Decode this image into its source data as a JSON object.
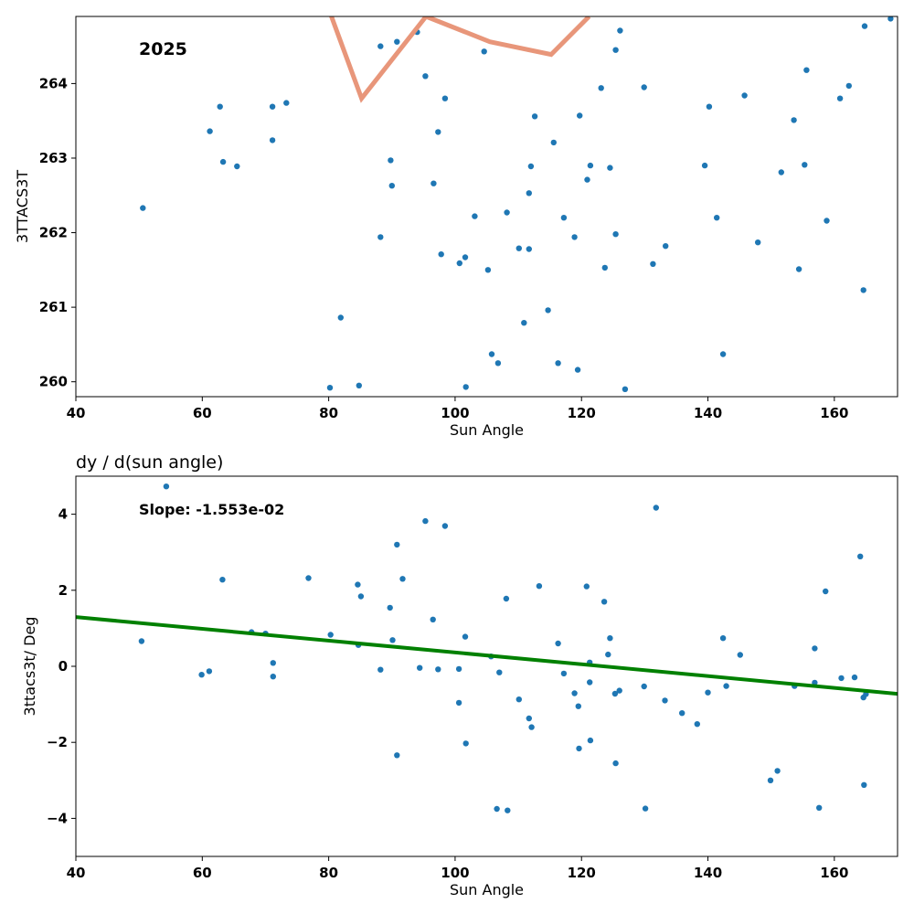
{
  "chart_data": [
    {
      "type": "scatter",
      "title": "",
      "xlabel": "Sun Angle",
      "ylabel": "3TTACS3T",
      "annotation": "2025",
      "xlim": [
        40,
        170
      ],
      "ylim": [
        259.8,
        264.9
      ],
      "xticks": [
        40,
        60,
        80,
        100,
        120,
        140,
        160
      ],
      "yticks": [
        260,
        261,
        262,
        263,
        264
      ],
      "grid": false,
      "marker_color": "#1f77b4",
      "line_color": "#e8967a",
      "points": [
        [
          50.6,
          262.33
        ],
        [
          61.2,
          263.36
        ],
        [
          62.8,
          263.69
        ],
        [
          63.3,
          262.95
        ],
        [
          65.5,
          262.89
        ],
        [
          71.1,
          263.69
        ],
        [
          71.1,
          263.24
        ],
        [
          73.3,
          263.74
        ],
        [
          80.2,
          259.92
        ],
        [
          81.9,
          260.86
        ],
        [
          84.8,
          259.95
        ],
        [
          88.2,
          264.5
        ],
        [
          88.2,
          261.94
        ],
        [
          89.8,
          262.97
        ],
        [
          90,
          262.63
        ],
        [
          90.8,
          264.56
        ],
        [
          94,
          264.69
        ],
        [
          95.3,
          264.1
        ],
        [
          96.6,
          262.66
        ],
        [
          97.3,
          263.35
        ],
        [
          97.8,
          261.71
        ],
        [
          98.4,
          263.8
        ],
        [
          100.7,
          261.59
        ],
        [
          101.6,
          261.67
        ],
        [
          101.7,
          259.93
        ],
        [
          103.1,
          262.22
        ],
        [
          104.6,
          264.43
        ],
        [
          105.2,
          261.5
        ],
        [
          105.8,
          260.37
        ],
        [
          106.8,
          260.25
        ],
        [
          108.2,
          262.27
        ],
        [
          110.1,
          261.79
        ],
        [
          110.9,
          260.79
        ],
        [
          111.7,
          262.53
        ],
        [
          111.7,
          261.78
        ],
        [
          112,
          262.89
        ],
        [
          112.6,
          263.56
        ],
        [
          114.7,
          260.96
        ],
        [
          115.6,
          263.21
        ],
        [
          116.3,
          260.25
        ],
        [
          117.2,
          262.2
        ],
        [
          118.9,
          261.94
        ],
        [
          119.4,
          260.16
        ],
        [
          119.7,
          263.57
        ],
        [
          120.9,
          262.71
        ],
        [
          121.4,
          262.9
        ],
        [
          123.1,
          263.94
        ],
        [
          123.7,
          261.53
        ],
        [
          124.5,
          262.87
        ],
        [
          125.4,
          261.98
        ],
        [
          125.4,
          264.45
        ],
        [
          126.1,
          264.71
        ],
        [
          126.9,
          259.9
        ],
        [
          129.9,
          263.95
        ],
        [
          131.3,
          261.58
        ],
        [
          133.3,
          261.82
        ],
        [
          139.5,
          262.9
        ],
        [
          140.2,
          263.69
        ],
        [
          141.4,
          262.2
        ],
        [
          142.4,
          260.37
        ],
        [
          145.8,
          263.84
        ],
        [
          147.9,
          261.87
        ],
        [
          151.6,
          262.81
        ],
        [
          153.6,
          263.51
        ],
        [
          154.4,
          261.51
        ],
        [
          155.3,
          262.91
        ],
        [
          155.6,
          264.18
        ],
        [
          158.8,
          262.16
        ],
        [
          160.9,
          263.8
        ],
        [
          162.3,
          263.97
        ],
        [
          164.6,
          261.23
        ],
        [
          164.8,
          264.77
        ],
        [
          168.9,
          264.87
        ]
      ],
      "line": [
        [
          80.0,
          265.0
        ],
        [
          85.2,
          263.8
        ],
        [
          95.4,
          264.9
        ],
        [
          105.5,
          264.56
        ],
        [
          115.2,
          264.39
        ],
        [
          121.2,
          264.9
        ]
      ]
    },
    {
      "type": "scatter",
      "title": "dy / d(sun angle)",
      "xlabel": "Sun Angle",
      "ylabel": "3ttacs3t/ Deg",
      "annotation": "Slope: -1.553e-02",
      "xlim": [
        40,
        170
      ],
      "ylim": [
        -5,
        5
      ],
      "xticks": [
        40,
        60,
        80,
        100,
        120,
        140,
        160
      ],
      "yticks": [
        -4,
        -2,
        0,
        2,
        4
      ],
      "ytick_labels": [
        "−4",
        "−2",
        "0",
        "2",
        "4"
      ],
      "grid": false,
      "marker_color": "#1f77b4",
      "line_color": "#008000",
      "points": [
        [
          50.4,
          0.66
        ],
        [
          54.3,
          4.73
        ],
        [
          59.9,
          -0.22
        ],
        [
          61.1,
          -0.13
        ],
        [
          63.2,
          2.28
        ],
        [
          67.8,
          0.9
        ],
        [
          70,
          0.86
        ],
        [
          71.2,
          0.09
        ],
        [
          71.2,
          -0.27
        ],
        [
          76.8,
          2.32
        ],
        [
          80.3,
          0.83
        ],
        [
          84.6,
          2.15
        ],
        [
          84.7,
          0.56
        ],
        [
          85.1,
          1.84
        ],
        [
          88.2,
          -0.09
        ],
        [
          89.7,
          1.54
        ],
        [
          90.1,
          0.69
        ],
        [
          90.8,
          3.2
        ],
        [
          90.8,
          -2.34
        ],
        [
          91.7,
          2.3
        ],
        [
          94.4,
          -0.04
        ],
        [
          95.3,
          3.82
        ],
        [
          96.5,
          1.23
        ],
        [
          97.3,
          -0.08
        ],
        [
          98.4,
          3.69
        ],
        [
          100.6,
          -0.07
        ],
        [
          100.6,
          -0.96
        ],
        [
          101.6,
          0.78
        ],
        [
          101.7,
          -2.03
        ],
        [
          105.7,
          0.26
        ],
        [
          106.6,
          -3.75
        ],
        [
          107,
          -0.16
        ],
        [
          108.1,
          1.78
        ],
        [
          108.3,
          -3.79
        ],
        [
          110.1,
          -0.87
        ],
        [
          111.7,
          -1.37
        ],
        [
          112.1,
          -1.6
        ],
        [
          113.3,
          2.11
        ],
        [
          116.3,
          0.6
        ],
        [
          117.2,
          -0.19
        ],
        [
          118.9,
          -0.71
        ],
        [
          119.5,
          -1.05
        ],
        [
          119.6,
          -2.16
        ],
        [
          120.8,
          2.1
        ],
        [
          121.3,
          -0.42
        ],
        [
          121.3,
          0.1
        ],
        [
          121.4,
          -1.95
        ],
        [
          123.6,
          1.7
        ],
        [
          124.2,
          0.31
        ],
        [
          124.5,
          0.74
        ],
        [
          125.3,
          -0.72
        ],
        [
          125.4,
          -2.55
        ],
        [
          126,
          -0.64
        ],
        [
          129.9,
          -0.53
        ],
        [
          130.1,
          -3.74
        ],
        [
          131.8,
          4.17
        ],
        [
          133.2,
          -0.9
        ],
        [
          135.9,
          -1.23
        ],
        [
          138.3,
          -1.52
        ],
        [
          140,
          -0.69
        ],
        [
          142.4,
          0.74
        ],
        [
          142.9,
          -0.52
        ],
        [
          145.1,
          0.3
        ],
        [
          149.9,
          -3
        ],
        [
          151,
          -2.75
        ],
        [
          153.7,
          -0.52
        ],
        [
          156.9,
          0.47
        ],
        [
          156.9,
          -0.43
        ],
        [
          157.6,
          -3.72
        ],
        [
          158.6,
          1.97
        ],
        [
          161.1,
          -0.31
        ],
        [
          163.2,
          -0.29
        ],
        [
          164.1,
          2.89
        ],
        [
          164.6,
          -0.82
        ],
        [
          164.7,
          -3.12
        ],
        [
          165,
          -0.73
        ]
      ],
      "line": [
        [
          40,
          1.295
        ],
        [
          170,
          -0.724
        ]
      ]
    }
  ]
}
